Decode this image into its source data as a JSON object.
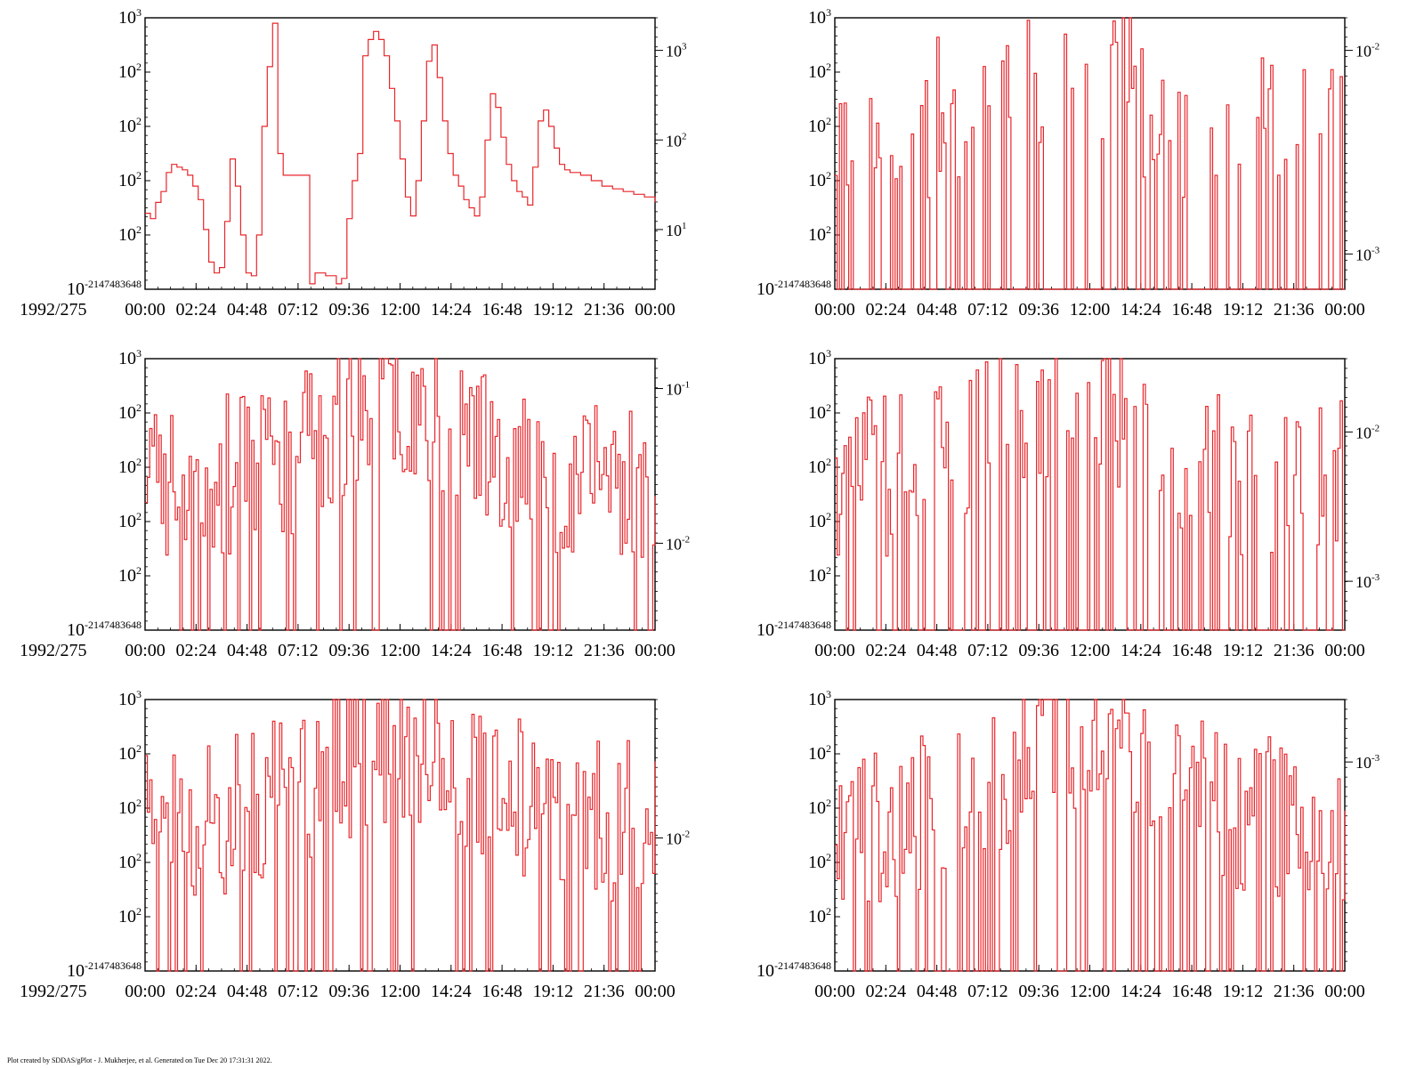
{
  "date_label": "1992/275",
  "footer": "Plot created by SDDAS/gPlot - J. Mukherjee, et al.  Generated on Tue Dec 20 17:31:31 2022.",
  "colors": {
    "trace": "#e8262b",
    "axis": "#000000",
    "background": "#ffffff"
  },
  "x_ticks": [
    "00:00",
    "02:24",
    "04:48",
    "07:12",
    "09:36",
    "12:00",
    "14:24",
    "16:48",
    "19:12",
    "21:36",
    "00:00"
  ],
  "left_tick_labels": [
    {
      "base": "10",
      "exp": "3"
    },
    {
      "base": "10",
      "exp": "2"
    },
    {
      "base": "10",
      "exp": "2"
    },
    {
      "base": "10",
      "exp": "2"
    },
    {
      "base": "10",
      "exp": "2"
    },
    {
      "base": "10",
      "exp": "-2147483648"
    }
  ],
  "chart_data": [
    {
      "type": "line",
      "panel": "row1-left",
      "x_range_hours": [
        0,
        24
      ],
      "right_axis_labels": [
        {
          "base": "10",
          "exp": "3"
        },
        {
          "base": "10",
          "exp": "2"
        },
        {
          "base": "10",
          "exp": "1"
        }
      ],
      "show_date_label": true,
      "description": "step trace, smooth peaks",
      "x": [
        0,
        0.25,
        0.5,
        0.75,
        1.0,
        1.25,
        1.5,
        1.75,
        2.0,
        2.25,
        2.5,
        2.75,
        3.0,
        3.25,
        3.5,
        3.75,
        4.0,
        4.25,
        4.5,
        4.75,
        5.0,
        5.25,
        5.5,
        5.75,
        6.0,
        6.25,
        6.5,
        7.75,
        8.0,
        8.25,
        8.5,
        8.75,
        9.0,
        9.25,
        9.5,
        9.75,
        10.0,
        10.25,
        10.5,
        10.75,
        11.0,
        11.25,
        11.5,
        11.75,
        12.0,
        12.25,
        12.5,
        12.75,
        13.0,
        13.25,
        13.5,
        13.75,
        14.0,
        14.25,
        14.5,
        14.75,
        15.0,
        15.25,
        15.5,
        15.75,
        16.0,
        16.25,
        16.5,
        16.75,
        17.0,
        17.25,
        17.5,
        17.75,
        18.0,
        18.25,
        18.5,
        18.75,
        19.0,
        19.25,
        19.5,
        19.75,
        20.0,
        20.5,
        21.0,
        21.5,
        22.0,
        22.5,
        23.0,
        23.5,
        24.0
      ],
      "y": [
        0.28,
        0.26,
        0.32,
        0.36,
        0.43,
        0.46,
        0.45,
        0.44,
        0.42,
        0.38,
        0.33,
        0.22,
        0.1,
        0.06,
        0.08,
        0.25,
        0.48,
        0.38,
        0.2,
        0.06,
        0.05,
        0.2,
        0.6,
        0.82,
        0.98,
        0.5,
        0.42,
        0.02,
        0.06,
        0.06,
        0.05,
        0.05,
        0.02,
        0.04,
        0.26,
        0.4,
        0.5,
        0.86,
        0.92,
        0.95,
        0.92,
        0.86,
        0.74,
        0.62,
        0.48,
        0.34,
        0.27,
        0.4,
        0.62,
        0.84,
        0.9,
        0.78,
        0.62,
        0.5,
        0.42,
        0.38,
        0.33,
        0.3,
        0.27,
        0.34,
        0.55,
        0.72,
        0.67,
        0.56,
        0.46,
        0.4,
        0.36,
        0.34,
        0.31,
        0.45,
        0.62,
        0.66,
        0.6,
        0.52,
        0.46,
        0.44,
        0.43,
        0.42,
        0.4,
        0.38,
        0.37,
        0.36,
        0.35,
        0.34,
        0.32
      ]
    },
    {
      "type": "line",
      "panel": "row1-right",
      "x_range_hours": [
        0,
        24
      ],
      "right_axis_labels": [
        {
          "base": "10",
          "exp": "-2"
        },
        {
          "base": "10",
          "exp": "-3"
        }
      ],
      "show_date_label": false,
      "seed": 11,
      "spike_density": 0.35,
      "spike_center_hours": 10.5
    },
    {
      "type": "line",
      "panel": "row2-left",
      "x_range_hours": [
        0,
        24
      ],
      "right_axis_labels": [
        {
          "base": "10",
          "exp": "-1"
        },
        {
          "base": "10",
          "exp": "-2"
        }
      ],
      "show_date_label": true,
      "seed": 23,
      "spike_density": 0.85,
      "spike_center_hours": 12
    },
    {
      "type": "line",
      "panel": "row2-right",
      "x_range_hours": [
        0,
        24
      ],
      "right_axis_labels": [
        {
          "base": "10",
          "exp": "-2"
        },
        {
          "base": "10",
          "exp": "-3"
        }
      ],
      "show_date_label": false,
      "seed": 37,
      "spike_density": 0.45,
      "spike_center_hours": 10.5
    },
    {
      "type": "line",
      "panel": "row3-left",
      "x_range_hours": [
        0,
        24
      ],
      "right_axis_labels": [
        {
          "base": "10",
          "exp": "-2"
        }
      ],
      "show_date_label": true,
      "seed": 51,
      "spike_density": 0.85,
      "spike_center_hours": 12
    },
    {
      "type": "line",
      "panel": "row3-right",
      "x_range_hours": [
        0,
        24
      ],
      "right_axis_labels": [
        {
          "base": "10",
          "exp": "-3"
        }
      ],
      "show_date_label": false,
      "seed": 67,
      "spike_density": 0.7,
      "spike_center_hours": 12
    }
  ]
}
